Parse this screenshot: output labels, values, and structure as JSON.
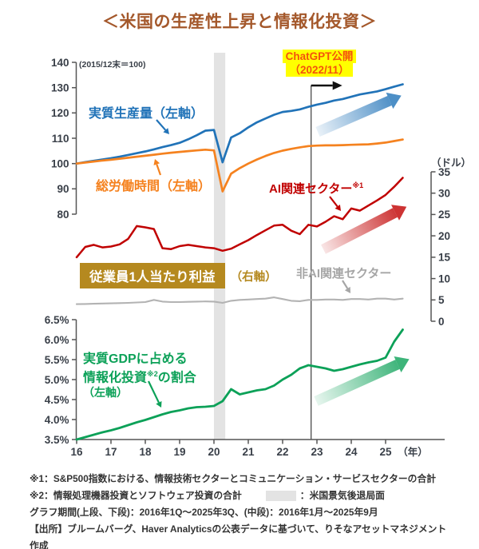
{
  "title": "＜米国の生産性上昇と情報化投資＞",
  "colors": {
    "title": "#a4582b",
    "blue": "#2173b8",
    "orange": "#f5821f",
    "red": "#c00000",
    "gray_line": "#b3b3b3",
    "gray_label": "#a6a6a6",
    "green": "#0ca158",
    "gold": "#b5891f",
    "band": "#e3e3e3",
    "highlight_bg": "#ffff00",
    "highlight_text": "#f4520c",
    "marker_line": "#4a4a4a",
    "axis_text": "#3a4049"
  },
  "annotations": {
    "index_note": "(2015/12末＝100)",
    "real_output_label": "実質生産量（左軸）",
    "hours_label": "総労働時間（左軸）",
    "ai_sector_label": "AI関連セクター",
    "ai_sector_sup": "※1",
    "non_ai_sector_label": "非AI関連セクター",
    "profit_box_label": "従業員1人当たり利益",
    "profit_axis_label": "（右軸）",
    "gdp_label_line1": "実質GDPに占める",
    "gdp_label_line2a": "情報化投資",
    "gdp_label_sup": "※2",
    "gdp_label_line2b": "の割合",
    "gdp_label_line3": "（左軸）",
    "chatgpt_line1": "ChatGPT公開",
    "chatgpt_line2": "（2022/11）",
    "dollar_unit": "（ドル）",
    "year_unit": "（年）"
  },
  "chart_data": {
    "type": "line",
    "x_axis": {
      "tick_labels": [
        "16",
        "17",
        "18",
        "19",
        "20",
        "21",
        "22",
        "23",
        "24",
        "25"
      ],
      "unit": "（年）"
    },
    "recession_band": {
      "x_from": 20.0,
      "x_to": 20.33,
      "label": "米国景気後退局面"
    },
    "event_marker": {
      "x": 22.83,
      "label": "ChatGPT公開（2022/11）"
    },
    "panels": [
      {
        "panel": "top",
        "axis_note": "(2015/12末＝100)",
        "ylim": [
          80,
          140
        ],
        "yticks": [
          140,
          130,
          120,
          110,
          100,
          90,
          80
        ],
        "axis_side": "left",
        "x": [
          16,
          16.25,
          16.5,
          16.75,
          17,
          17.25,
          17.5,
          17.75,
          18,
          18.25,
          18.5,
          18.75,
          19,
          19.25,
          19.5,
          19.75,
          20,
          20.25,
          20.5,
          20.75,
          21,
          21.25,
          21.5,
          21.75,
          22,
          22.25,
          22.5,
          22.75,
          23,
          23.25,
          23.5,
          23.75,
          24,
          24.25,
          24.5,
          24.75,
          25,
          25.25,
          25.5
        ],
        "series": [
          {
            "key": "real_output",
            "name": "実質生産量（左軸）",
            "color_key": "blue",
            "values": [
              100,
              100.6,
              101.1,
              101.6,
              102.1,
              102.7,
              103.4,
              104.1,
              104.8,
              105.6,
              106.5,
              107.3,
              108.2,
              109.6,
              111.2,
              113,
              113.3,
              100.5,
              110.3,
              112,
              114.3,
              116.3,
              117.8,
              119.3,
              120.4,
              120.8,
              121.4,
              122.4,
              123.3,
              124,
              124.9,
              125.5,
              126.4,
              127.3,
              127.9,
              128.5,
              129.4,
              130.4,
              131.3
            ]
          },
          {
            "key": "total_hours",
            "name": "総労働時間（左軸）",
            "color_key": "orange",
            "values": [
              100,
              100.4,
              100.8,
              101.2,
              101.5,
              101.9,
              102.3,
              102.7,
              103.1,
              103.5,
              103.9,
              104.3,
              104.6,
              104.9,
              105.2,
              105.5,
              105.2,
              89,
              96,
              98.2,
              100,
              101.6,
              103,
              104.2,
              105.1,
              105.8,
              106.4,
              106.9,
              107.1,
              107.2,
              107.2,
              107.3,
              107.4,
              107.5,
              107.6,
              107.9,
              108.3,
              108.9,
              109.5
            ]
          }
        ]
      },
      {
        "panel": "middle",
        "unit": "（ドル）",
        "ylim": [
          0,
          35
        ],
        "yticks": [
          35,
          30,
          25,
          20,
          15,
          10,
          5,
          0
        ],
        "axis_side": "right",
        "x": [
          16,
          16.25,
          16.5,
          16.75,
          17,
          17.25,
          17.5,
          17.75,
          18,
          18.25,
          18.5,
          18.75,
          19,
          19.25,
          19.5,
          19.75,
          20,
          20.25,
          20.5,
          20.75,
          21,
          21.25,
          21.5,
          21.75,
          22,
          22.25,
          22.5,
          22.75,
          23,
          23.25,
          23.5,
          23.75,
          24,
          24.25,
          24.5,
          24.75,
          25,
          25.25,
          25.5
        ],
        "series": [
          {
            "key": "ai_sector",
            "name": "AI関連セクター※1",
            "color_key": "red",
            "values": [
              15,
              17.4,
              17.9,
              17.3,
              17.5,
              18,
              19.3,
              22.3,
              22,
              21.6,
              17.1,
              16.9,
              17.6,
              17.9,
              17.6,
              17.3,
              17.1,
              16.5,
              17,
              18,
              19,
              20.2,
              21.3,
              22.4,
              22.6,
              21.2,
              20.4,
              22.6,
              22.2,
              23.3,
              24.6,
              23.9,
              26.4,
              25.9,
              27.1,
              28.3,
              29.6,
              31.5,
              33.6
            ]
          },
          {
            "key": "non_ai_sector",
            "name": "非AI関連セクター",
            "color_key": "gray_line",
            "values": [
              4,
              4.05,
              4.1,
              4.15,
              4.2,
              4.25,
              4.3,
              4.4,
              4.5,
              5,
              4.6,
              4.5,
              4.5,
              4.55,
              4.6,
              4.65,
              4.6,
              4.3,
              4.8,
              5,
              5.1,
              5.2,
              5.3,
              5.6,
              5.2,
              4.8,
              4.7,
              5,
              5,
              5.1,
              5.1,
              5,
              5.2,
              5.2,
              5.1,
              5.3,
              5.3,
              5.1,
              5.3
            ]
          }
        ]
      },
      {
        "panel": "bottom",
        "ylim": [
          3.5,
          6.5
        ],
        "yticks": [
          6.5,
          6,
          5.5,
          5,
          4.5,
          4,
          3.5
        ],
        "ytick_labels": [
          "6.5%",
          "6.0%",
          "5.5%",
          "5.0%",
          "4.5%",
          "4.0%",
          "3.5%"
        ],
        "axis_side": "left",
        "x": [
          16,
          16.25,
          16.5,
          16.75,
          17,
          17.25,
          17.5,
          17.75,
          18,
          18.25,
          18.5,
          18.75,
          19,
          19.25,
          19.5,
          19.75,
          20,
          20.25,
          20.5,
          20.75,
          21,
          21.25,
          21.5,
          21.75,
          22,
          22.25,
          22.5,
          22.75,
          23,
          23.25,
          23.5,
          23.75,
          24,
          24.25,
          24.5,
          24.75,
          25,
          25.25,
          25.5
        ],
        "series": [
          {
            "key": "it_investment_share",
            "name": "実質GDPに占める情報化投資※2の割合（左軸）",
            "color_key": "green",
            "values": [
              3.5,
              3.56,
              3.62,
              3.68,
              3.73,
              3.79,
              3.86,
              3.93,
              3.99,
              4.06,
              4.13,
              4.19,
              4.23,
              4.28,
              4.31,
              4.32,
              4.34,
              4.46,
              4.76,
              4.63,
              4.68,
              4.73,
              4.76,
              4.85,
              5,
              5.12,
              5.28,
              5.36,
              5.32,
              5.28,
              5.22,
              5.26,
              5.32,
              5.38,
              5.43,
              5.47,
              5.55,
              5.95,
              6.25
            ]
          }
        ]
      }
    ]
  },
  "footnotes": {
    "note1": "※1：S&P500指数における、情報技術セクターとコミュニケーション・サービスセクターの合計",
    "note2_left": "※2：情報処理機器投資とソフトウェア投資の合計",
    "note2_right": "：米国景気後退局面",
    "period": "グラフ期間(上段、下段)：2016年1Q～2025年3Q、(中段)：2016年1月～2025年9月",
    "source": "【出所】ブルームバーグ、Haver Analyticsの公表データに基づいて、りそなアセットマネジメント作成"
  }
}
